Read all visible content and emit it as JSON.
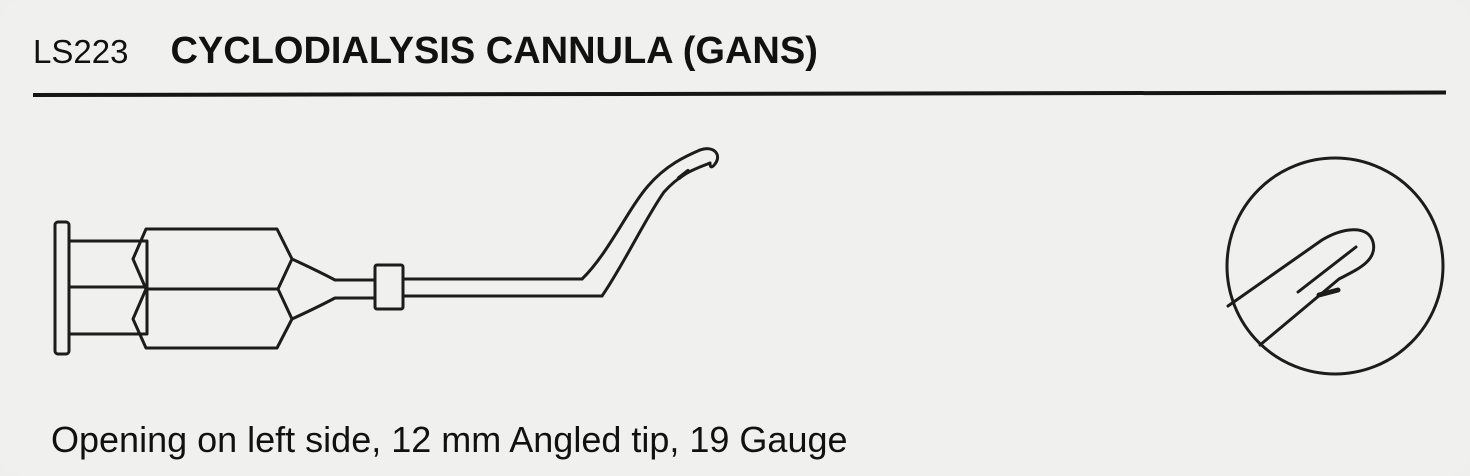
{
  "product": {
    "catalog_number": "LS223",
    "name": "CYCLODIALYSIS CANNULA (GANS)",
    "description": "Opening on left side, 12 mm Angled tip, 19 Gauge"
  },
  "illustration": {
    "main_icon": "cannula-instrument-icon",
    "detail_icon": "cannula-tip-detail-icon"
  }
}
